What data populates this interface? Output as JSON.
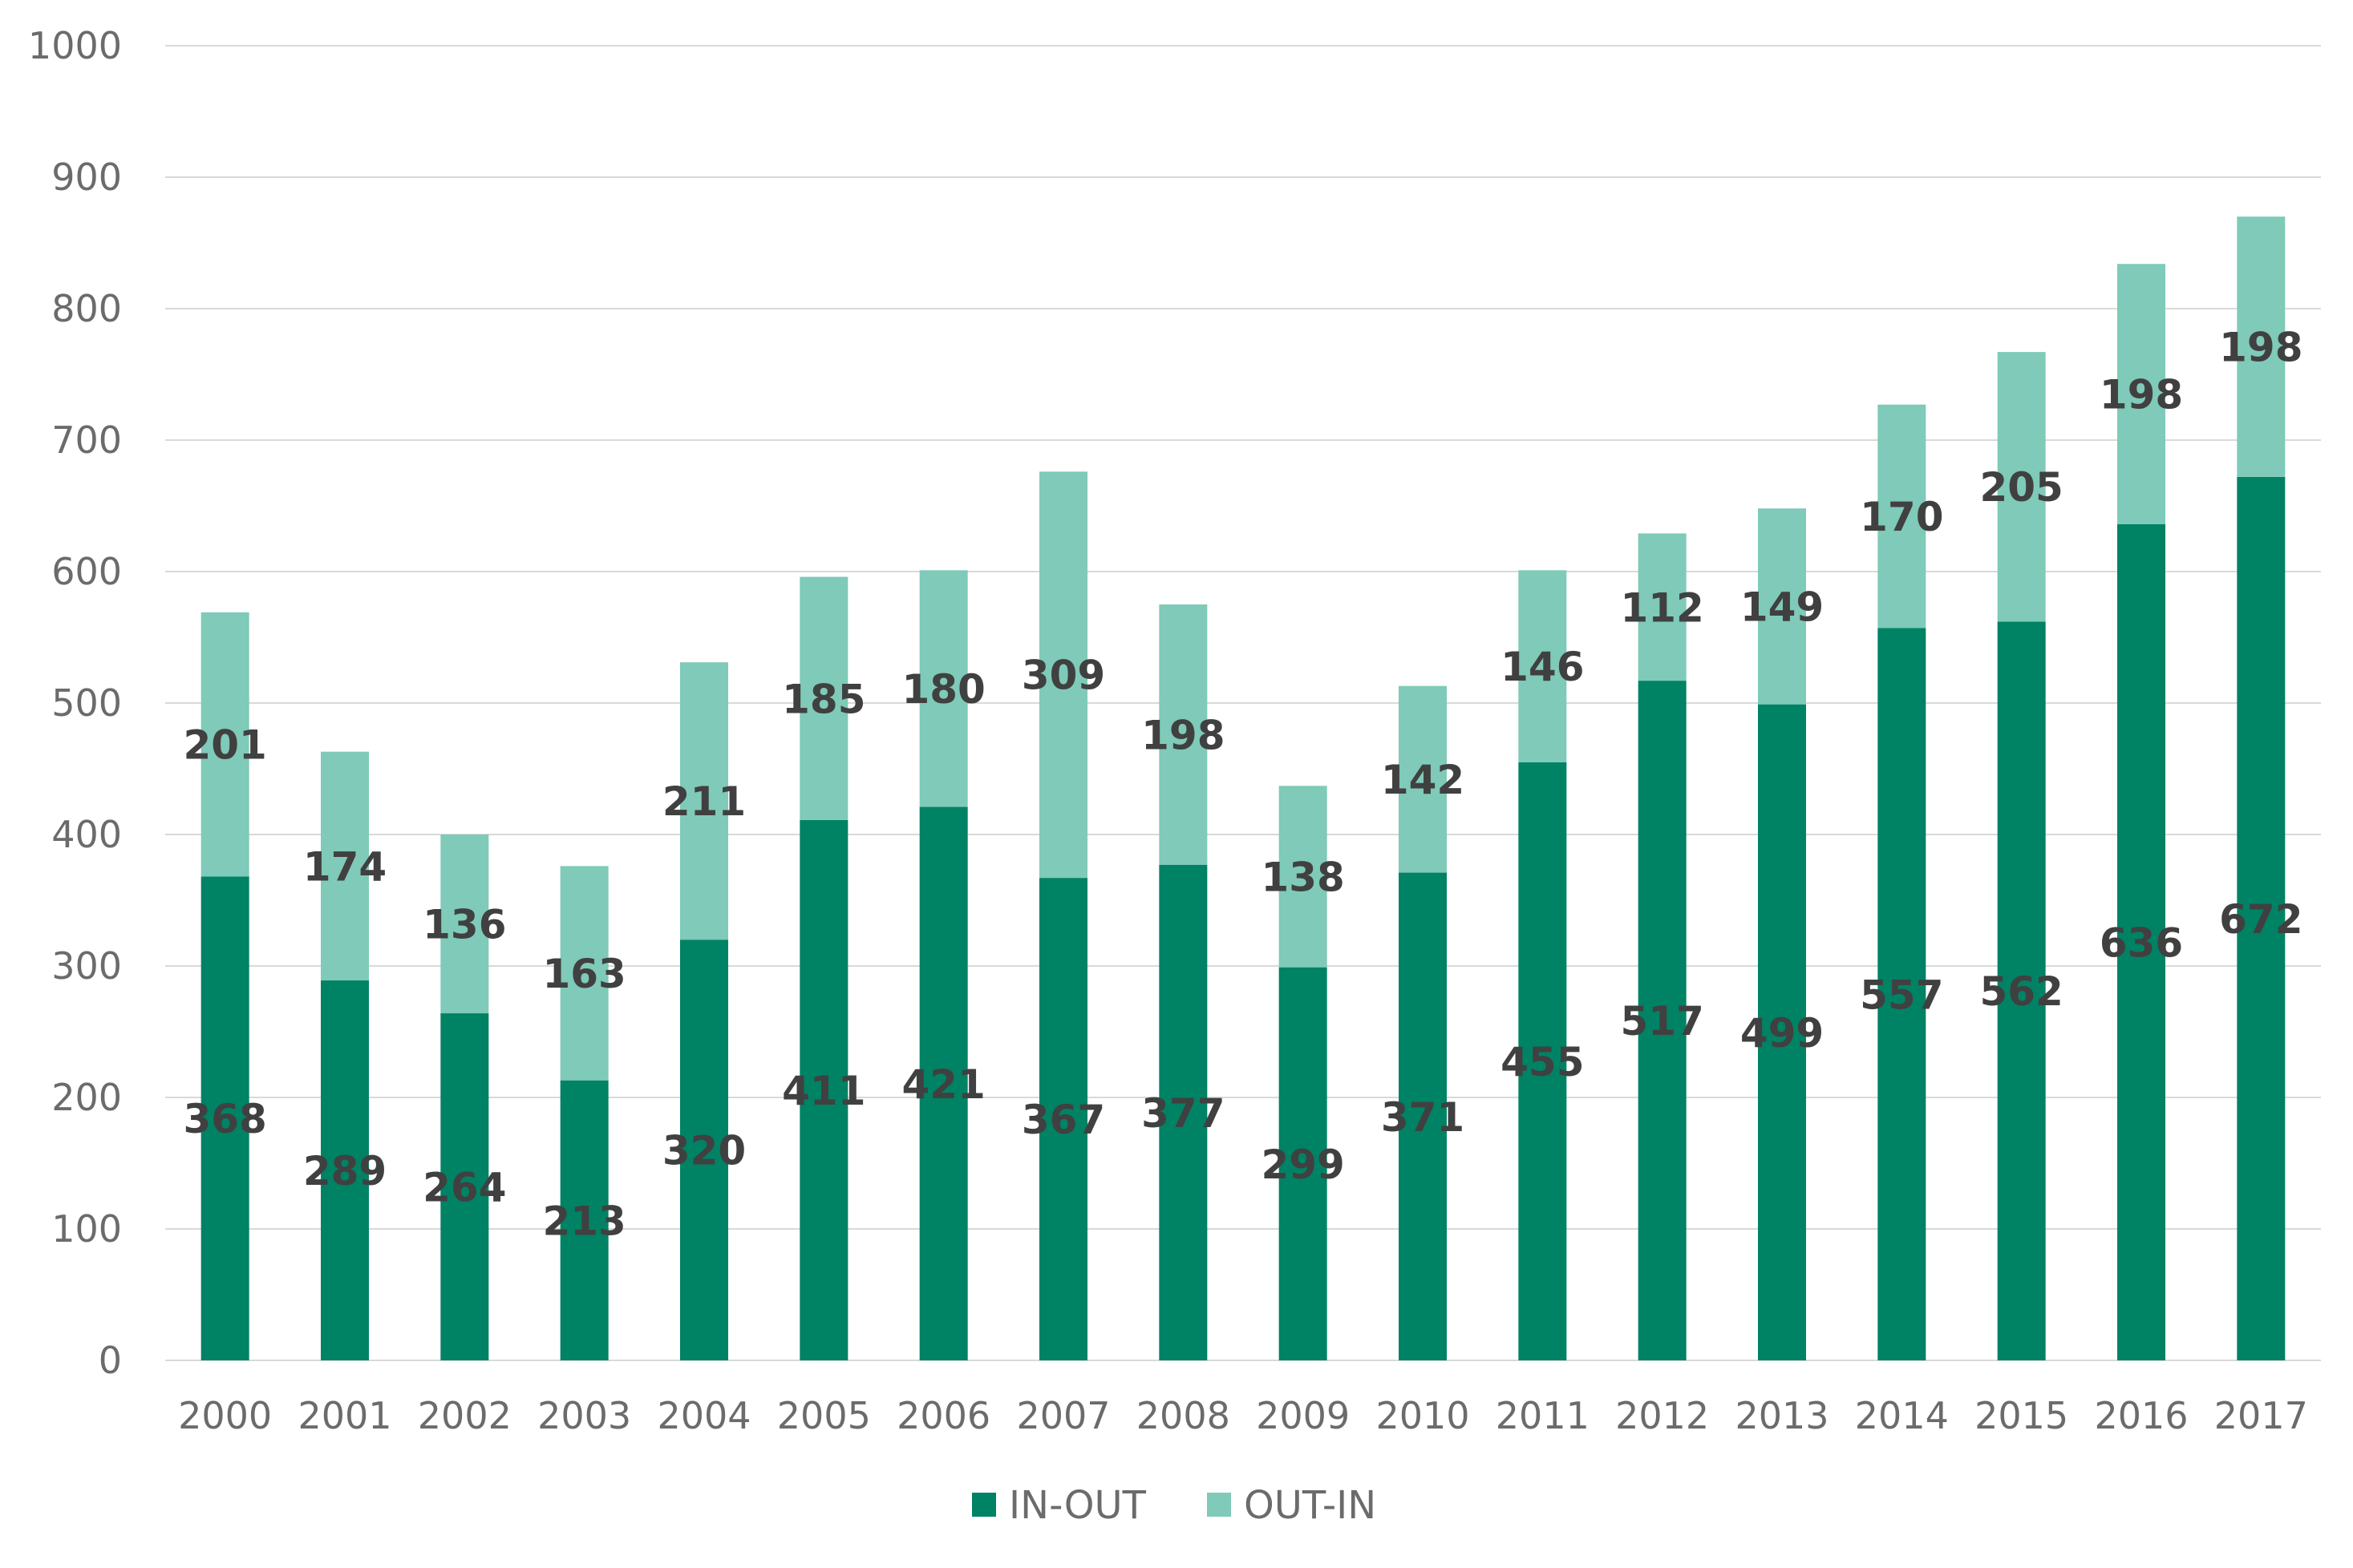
{
  "chart_data": {
    "type": "bar",
    "stacked": true,
    "categories": [
      "2000",
      "2001",
      "2002",
      "2003",
      "2004",
      "2005",
      "2006",
      "2007",
      "2008",
      "2009",
      "2010",
      "2011",
      "2012",
      "2013",
      "2014",
      "2015",
      "2016",
      "2017"
    ],
    "series": [
      {
        "name": "IN-OUT",
        "color": "#008264",
        "values": [
          368,
          289,
          264,
          213,
          320,
          411,
          421,
          367,
          377,
          299,
          371,
          455,
          517,
          499,
          557,
          562,
          636,
          672
        ]
      },
      {
        "name": "OUT-IN",
        "color": "#7fcab8",
        "values": [
          201,
          174,
          136,
          163,
          211,
          185,
          180,
          309,
          198,
          138,
          142,
          146,
          112,
          149,
          170,
          205,
          198,
          198
        ]
      }
    ],
    "ylim": [
      0,
      1000
    ],
    "yticks": [
      0,
      100,
      200,
      300,
      400,
      500,
      600,
      700,
      800,
      900,
      1000
    ],
    "grid": true,
    "legend": "bottom",
    "data_labels": true
  }
}
